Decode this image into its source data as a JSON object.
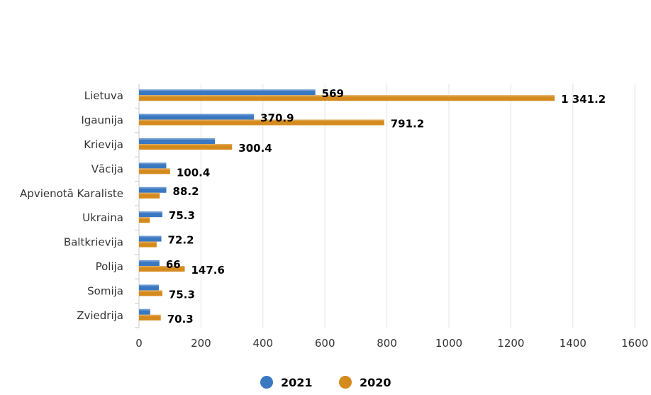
{
  "chart_data": {
    "type": "bar",
    "orientation": "horizontal",
    "categories": [
      "Lietuva",
      "Igaunija",
      "Krievija",
      "Vācija",
      "Apvienotā Karaliste",
      "Ukraina",
      "Baltkrievija",
      "Polija",
      "Somija",
      "Zviedrija"
    ],
    "series": [
      {
        "name": "2021",
        "color": "#3a78c2",
        "values": [
          569,
          370.9,
          245,
          88,
          88.2,
          75.3,
          72.2,
          66,
          64,
          36
        ],
        "labels": [
          "569",
          "370.9",
          "",
          "",
          "88.2",
          "75.3",
          "72.2",
          "66",
          "",
          ""
        ]
      },
      {
        "name": "2020",
        "color": "#d48a1c",
        "values": [
          1341.2,
          791.2,
          300.4,
          100.4,
          67,
          35,
          57,
          147.6,
          75.3,
          70.3
        ],
        "labels": [
          "1 341.2",
          "791.2",
          "300.4",
          "100.4",
          "",
          "",
          "",
          "147.6",
          "75.3",
          "70.3"
        ]
      }
    ],
    "xlim": [
      0,
      1600
    ],
    "x_ticks": [
      0,
      200,
      400,
      600,
      800,
      1000,
      1200,
      1400,
      1600
    ],
    "grid": true,
    "legend_position": "bottom"
  }
}
